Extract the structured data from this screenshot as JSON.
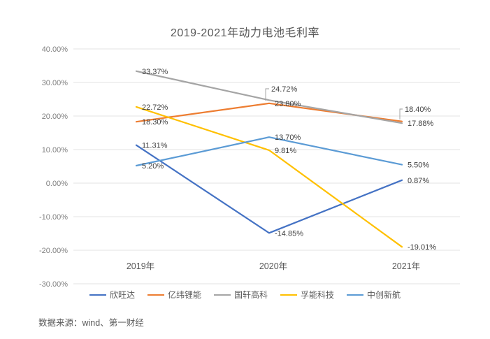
{
  "chart_data": {
    "type": "line",
    "title": "2019-2021年动力电池毛利率",
    "categories": [
      "2019年",
      "2020年",
      "2021年"
    ],
    "series": [
      {
        "name": "欣旺达",
        "color": "#4472C4",
        "values": [
          11.31,
          -14.85,
          0.87
        ],
        "labels": [
          "11.31%",
          "-14.85%",
          "0.87%"
        ]
      },
      {
        "name": "亿纬锂能",
        "color": "#ED7D31",
        "values": [
          18.3,
          23.8,
          18.4
        ],
        "labels": [
          "18.30%",
          "23.80%",
          "18.40%"
        ]
      },
      {
        "name": "国轩高科",
        "color": "#A5A5A5",
        "values": [
          33.37,
          24.72,
          17.88
        ],
        "labels": [
          "33.37%",
          "24.72%",
          "17.88%"
        ]
      },
      {
        "name": "孚能科技",
        "color": "#FFC000",
        "values": [
          22.72,
          9.81,
          -19.01
        ],
        "labels": [
          "22.72%",
          "9.81%",
          "-19.01%"
        ]
      },
      {
        "name": "中创新航",
        "color": "#5B9BD5",
        "values": [
          5.2,
          13.7,
          5.5
        ],
        "labels": [
          "5.20%",
          "13.70%",
          "5.50%"
        ]
      }
    ],
    "y_axis": {
      "min": -30,
      "max": 40,
      "ticks": [
        {
          "value": 40,
          "label": "40.00%"
        },
        {
          "value": 30,
          "label": "30.00%"
        },
        {
          "value": 20,
          "label": "20.00%"
        },
        {
          "value": 10,
          "label": "10.00%"
        },
        {
          "value": 0,
          "label": "0.00%"
        },
        {
          "value": -10,
          "label": "-10.00%"
        },
        {
          "value": -20,
          "label": "-20.00%"
        },
        {
          "value": -30,
          "label": "-30.00%"
        }
      ]
    },
    "grid": true,
    "legend_position": "bottom",
    "source": "数据来源：wind、第一财经",
    "colors": {
      "gridline": "#e3e3e3",
      "tick_label": "#7f7f7f",
      "category_label": "#595959",
      "data_label": "#404040",
      "leader_line": "#9b9b9b"
    }
  }
}
